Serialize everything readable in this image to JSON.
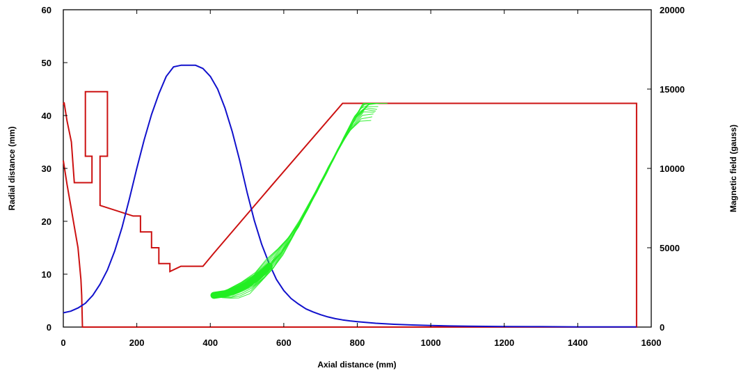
{
  "chart_data": {
    "type": "line",
    "xlabel": "Axial distance (mm)",
    "ylabel": "Radial distance (mm)",
    "y2label": "Magnetic field (gauss)",
    "xlim": [
      0,
      1600
    ],
    "ylim": [
      0,
      60
    ],
    "y2lim": [
      0,
      20000
    ],
    "x_ticks": [
      "0",
      "200",
      "400",
      "600",
      "800",
      "1000",
      "1200",
      "1400",
      "1600"
    ],
    "y_ticks": [
      "0",
      "10",
      "20",
      "30",
      "40",
      "50",
      "60"
    ],
    "y2_ticks": [
      "0",
      "5000",
      "10000",
      "15000",
      "20000"
    ],
    "grid": false,
    "series": [
      {
        "axis": "left",
        "color": "#cc1111",
        "segments": [
          [
            [
              0,
              31.5
            ],
            [
              10,
              27
            ],
            [
              20,
              23
            ],
            [
              30,
              19
            ],
            [
              40,
              15
            ],
            [
              48,
              9
            ],
            [
              50,
              6
            ],
            [
              52,
              0
            ],
            [
              1560,
              0
            ],
            [
              1560,
              42.3
            ],
            [
              760,
              42.3
            ],
            [
              570,
              27
            ],
            [
              410,
              14
            ],
            [
              380,
              11.5
            ],
            [
              320,
              11.5
            ],
            [
              290,
              10.5
            ],
            [
              290,
              12
            ],
            [
              270,
              12
            ],
            [
              260,
              12
            ],
            [
              260,
              15
            ],
            [
              240,
              15
            ],
            [
              240,
              18
            ],
            [
              210,
              18
            ],
            [
              210,
              21
            ],
            [
              190,
              21
            ],
            [
              100,
              23
            ],
            [
              100,
              32.3
            ],
            [
              120,
              32.3
            ],
            [
              120,
              44.5
            ],
            [
              60,
              44.5
            ],
            [
              60,
              32.3
            ],
            [
              78,
              32.3
            ],
            [
              78,
              27.3
            ],
            [
              30,
              27.3
            ],
            [
              22,
              35
            ],
            [
              10,
              39
            ],
            [
              2,
              42.5
            ],
            [
              0,
              42
            ]
          ]
        ]
      },
      {
        "axis": "right",
        "color": "#1111cc",
        "x": [
          0,
          20,
          40,
          60,
          80,
          100,
          120,
          140,
          160,
          180,
          200,
          220,
          240,
          260,
          280,
          300,
          320,
          340,
          360,
          380,
          400,
          420,
          440,
          460,
          480,
          500,
          520,
          540,
          560,
          580,
          600,
          620,
          640,
          660,
          680,
          700,
          720,
          740,
          760,
          780,
          800,
          850,
          900,
          950,
          1000,
          1050,
          1100,
          1150,
          1200,
          1300,
          1400,
          1500,
          1560
        ],
        "y": [
          900,
          1000,
          1200,
          1500,
          2000,
          2700,
          3600,
          4800,
          6300,
          8100,
          10000,
          11800,
          13400,
          14700,
          15800,
          16400,
          16500,
          16500,
          16500,
          16300,
          15800,
          15000,
          13800,
          12300,
          10500,
          8500,
          6700,
          5200,
          4000,
          3000,
          2300,
          1800,
          1450,
          1150,
          950,
          780,
          640,
          530,
          450,
          390,
          340,
          240,
          175,
          130,
          95,
          70,
          55,
          45,
          35,
          25,
          15,
          10,
          8
        ]
      },
      {
        "axis": "left",
        "color": "#22ee22",
        "style": "particle-trajectory-band",
        "x": [
          410,
          440,
          470,
          500,
          530,
          560,
          590,
          620,
          650,
          680,
          710,
          740,
          770,
          800,
          830,
          860
        ],
        "y": [
          6,
          6.3,
          7,
          8,
          9.5,
          11.5,
          14,
          17,
          20.5,
          24.5,
          28.5,
          32.5,
          36.5,
          40,
          42.3,
          42.3
        ]
      }
    ]
  }
}
